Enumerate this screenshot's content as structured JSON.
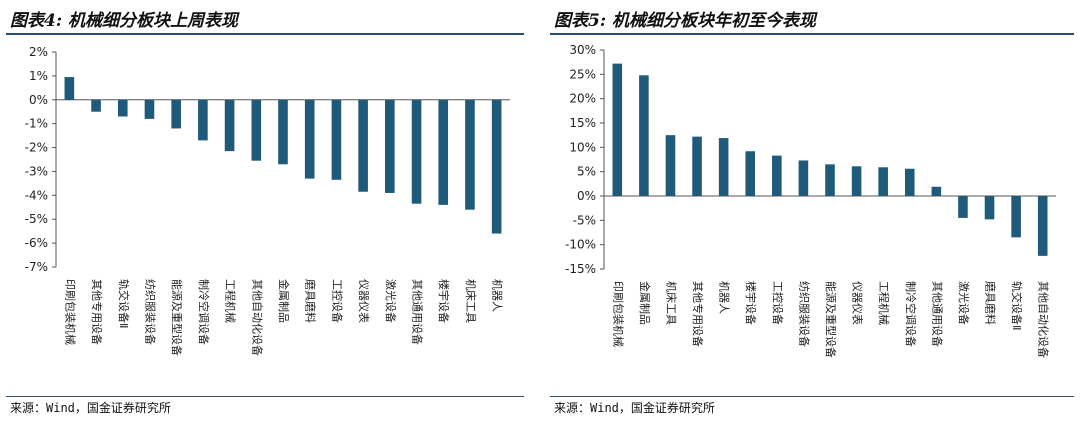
{
  "left": {
    "title": "图表4: 机械细分板块上周表现",
    "source": "来源：Wind，国金证券研究所"
  },
  "right": {
    "title": "图表5: 机械细分板块年初至今表现",
    "source": "来源：Wind，国金证券研究所"
  },
  "colors": {
    "bar": "#1f5a7a",
    "axis": "#555555",
    "rule": "#2b4d6e"
  },
  "chart_data": [
    {
      "type": "bar",
      "title": "图表4: 机械细分板块上周表现",
      "xlabel": "",
      "ylabel": "",
      "ylim": [
        -7,
        2
      ],
      "yticks": [
        2,
        1,
        0,
        -1,
        -2,
        -3,
        -4,
        -5,
        -6,
        -7
      ],
      "ytick_labels": [
        "2%",
        "1%",
        "0%",
        "-1%",
        "-2%",
        "-3%",
        "-4%",
        "-5%",
        "-6%",
        "-7%"
      ],
      "grid": false,
      "categories": [
        "印刷包装机械",
        "其他专用设备",
        "轨交设备Ⅱ",
        "纺织服装设备",
        "能源及重型设备",
        "制冷空调设备",
        "工程机械",
        "其他自动化设备",
        "金属制品",
        "磨具磨料",
        "工控设备",
        "仪器仪表",
        "激光设备",
        "其他通用设备",
        "楼宇设备",
        "机床工具",
        "机器人"
      ],
      "values": [
        0.95,
        -0.5,
        -0.7,
        -0.8,
        -1.2,
        -1.7,
        -2.15,
        -2.55,
        -2.7,
        -3.3,
        -3.35,
        -3.85,
        -3.9,
        -4.35,
        -4.4,
        -4.6,
        -5.6
      ]
    },
    {
      "type": "bar",
      "title": "图表5: 机械细分板块年初至今表现",
      "xlabel": "",
      "ylabel": "",
      "ylim": [
        -15,
        30
      ],
      "yticks": [
        30,
        25,
        20,
        15,
        10,
        5,
        0,
        -5,
        -10,
        -15
      ],
      "ytick_labels": [
        "30%",
        "25%",
        "20%",
        "15%",
        "10%",
        "5%",
        "0%",
        "-5%",
        "-10%",
        "-15%"
      ],
      "grid": false,
      "categories": [
        "印刷包装机械",
        "金属制品",
        "机床工具",
        "其他专用设备",
        "机器人",
        "楼宇设备",
        "工控设备",
        "纺织服装设备",
        "能源及重型设备",
        "仪器仪表",
        "工程机械",
        "制冷空调设备",
        "其他通用设备",
        "激光设备",
        "磨具磨料",
        "轨交设备Ⅱ",
        "其他自动化设备"
      ],
      "values": [
        27.2,
        24.8,
        12.5,
        12.2,
        11.9,
        9.2,
        8.3,
        7.3,
        6.5,
        6.1,
        5.9,
        5.6,
        1.9,
        -4.5,
        -4.8,
        -8.5,
        -12.3
      ]
    }
  ]
}
